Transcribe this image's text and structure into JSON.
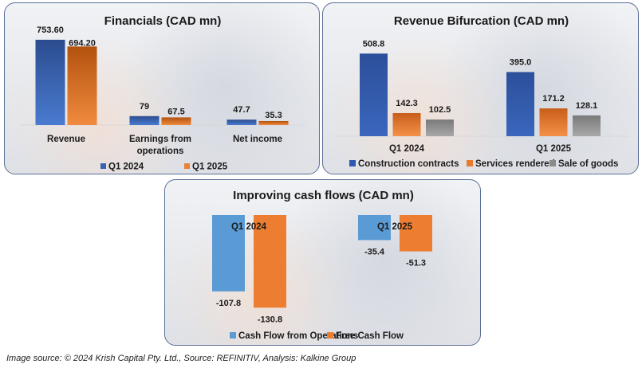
{
  "caption": "Image source: © 2024 Krish Capital Pty. Ltd., Source: REFINITIV, Analysis: Kalkine Group",
  "colors": {
    "blue_dark": "#2f55a4",
    "orange_dark": "#d0641f",
    "grey": "#8c8c8c",
    "blue_light": "#5b9bd5",
    "orange_light": "#ed7d31"
  },
  "chart_data": [
    {
      "type": "bar",
      "title": "Financials (CAD mn)",
      "categories": [
        "Revenue",
        "Earnings from operations",
        "Net income"
      ],
      "category_lines": [
        [
          "Revenue"
        ],
        [
          "Earnings from",
          "operations"
        ],
        [
          "Net income"
        ]
      ],
      "series": [
        {
          "name": "Q1 2024",
          "values": [
            753.6,
            79,
            47.7
          ],
          "labels": [
            "753.60",
            "79",
            "47.7"
          ]
        },
        {
          "name": "Q1 2025",
          "values": [
            694.2,
            67.5,
            35.3
          ],
          "labels": [
            "694.20",
            "67.5",
            "35.3"
          ]
        }
      ],
      "ylim": [
        0,
        760
      ],
      "legend": "bottom",
      "grid": false
    },
    {
      "type": "bar",
      "title": "Revenue Bifurcation (CAD mn)",
      "categories": [
        "Q1 2024",
        "Q1 2025"
      ],
      "series": [
        {
          "name": "Construction contracts",
          "values": [
            508.8,
            395.0
          ],
          "labels": [
            "508.8",
            "395.0"
          ]
        },
        {
          "name": "Services rendered",
          "values": [
            142.3,
            171.2
          ],
          "labels": [
            "142.3",
            "171.2"
          ]
        },
        {
          "name": "Sale of goods",
          "values": [
            102.5,
            128.1
          ],
          "labels": [
            "102.5",
            "128.1"
          ]
        }
      ],
      "ylim": [
        0,
        515
      ],
      "legend": "bottom",
      "grid": false
    },
    {
      "type": "bar",
      "title": "Improving cash flows (CAD mn)",
      "categories": [
        "Q1 2024",
        "Q1 2025"
      ],
      "series": [
        {
          "name": "Cash Flow from Operations",
          "values": [
            -107.8,
            -35.4
          ],
          "labels": [
            "-107.8",
            "-35.4"
          ]
        },
        {
          "name": "Free Cash Flow",
          "values": [
            -130.8,
            -51.3
          ],
          "labels": [
            "-130.8",
            "-51.3"
          ]
        }
      ],
      "ylim": [
        -135,
        0
      ],
      "legend": "bottom",
      "grid": false
    }
  ]
}
